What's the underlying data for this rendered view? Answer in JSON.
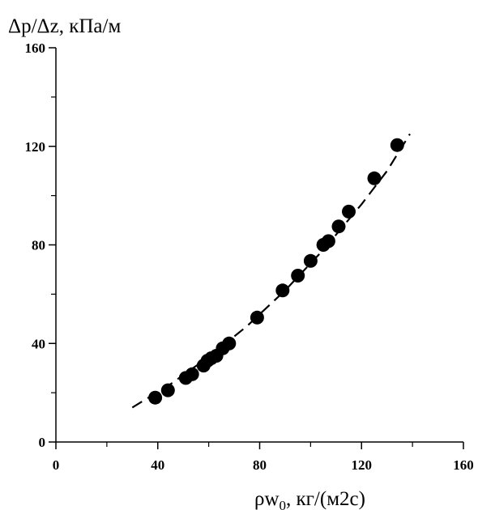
{
  "chart_data": {
    "type": "scatter",
    "ylabel": "Δp/Δz, кПа/м",
    "xlabel_main": "ρw",
    "xlabel_sub": "0",
    "xlabel_rest": ", кг/(м2с)",
    "xlim": [
      0,
      160
    ],
    "ylim": [
      0,
      160
    ],
    "x_ticks": [
      0,
      40,
      80,
      120,
      160
    ],
    "y_ticks": [
      0,
      40,
      80,
      120,
      160
    ],
    "x_minor_ticks": [
      20,
      60,
      100,
      140
    ],
    "y_minor_ticks": [
      20,
      60,
      100,
      140
    ],
    "grid": false,
    "marker_color": "#000000",
    "points": [
      {
        "x": 39,
        "y": 18
      },
      {
        "x": 44,
        "y": 21
      },
      {
        "x": 51,
        "y": 26
      },
      {
        "x": 53.5,
        "y": 27.5
      },
      {
        "x": 58,
        "y": 31
      },
      {
        "x": 59.5,
        "y": 33
      },
      {
        "x": 61,
        "y": 34
      },
      {
        "x": 63,
        "y": 35
      },
      {
        "x": 65.5,
        "y": 38
      },
      {
        "x": 68,
        "y": 40
      },
      {
        "x": 79,
        "y": 50.5
      },
      {
        "x": 89,
        "y": 61.5
      },
      {
        "x": 95,
        "y": 67.5
      },
      {
        "x": 100,
        "y": 73.5
      },
      {
        "x": 105,
        "y": 80
      },
      {
        "x": 107,
        "y": 81.5
      },
      {
        "x": 111,
        "y": 87.5
      },
      {
        "x": 115,
        "y": 93.5
      },
      {
        "x": 125,
        "y": 107
      },
      {
        "x": 134,
        "y": 120.5
      }
    ],
    "fit_line": {
      "style": "dashed",
      "points": [
        {
          "x": 30,
          "y": 14
        },
        {
          "x": 45,
          "y": 23.5
        },
        {
          "x": 60,
          "y": 34.5
        },
        {
          "x": 75,
          "y": 47
        },
        {
          "x": 90,
          "y": 61.5
        },
        {
          "x": 105,
          "y": 78
        },
        {
          "x": 120,
          "y": 96.5
        },
        {
          "x": 130,
          "y": 110
        },
        {
          "x": 139,
          "y": 125
        }
      ]
    }
  }
}
